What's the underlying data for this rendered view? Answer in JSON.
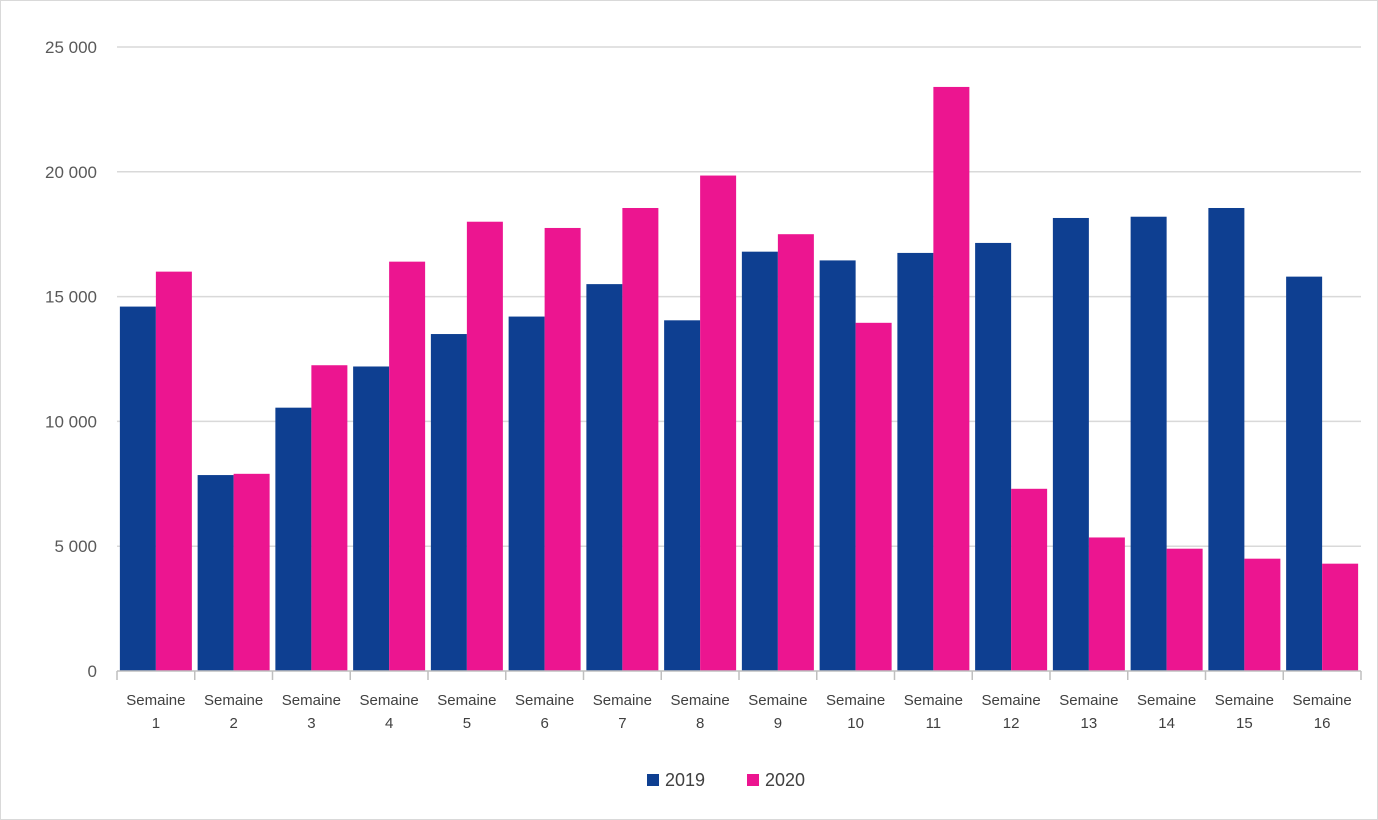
{
  "chart_data": {
    "type": "bar",
    "categories": [
      [
        "Semaine",
        "1"
      ],
      [
        "Semaine",
        "2"
      ],
      [
        "Semaine",
        "3"
      ],
      [
        "Semaine",
        "4"
      ],
      [
        "Semaine",
        "5"
      ],
      [
        "Semaine",
        "6"
      ],
      [
        "Semaine",
        "7"
      ],
      [
        "Semaine",
        "8"
      ],
      [
        "Semaine",
        "9"
      ],
      [
        "Semaine",
        "10"
      ],
      [
        "Semaine",
        "11"
      ],
      [
        "Semaine",
        "12"
      ],
      [
        "Semaine",
        "13"
      ],
      [
        "Semaine",
        "14"
      ],
      [
        "Semaine",
        "15"
      ],
      [
        "Semaine",
        "16"
      ]
    ],
    "series": [
      {
        "name": "2019",
        "color": "#0e3f91",
        "values": [
          14600,
          7850,
          10550,
          12200,
          13500,
          14200,
          15500,
          14050,
          16800,
          16450,
          16750,
          17150,
          18150,
          18200,
          18550,
          15800
        ]
      },
      {
        "name": "2020",
        "color": "#ec1590",
        "values": [
          16000,
          7900,
          12250,
          16400,
          18000,
          17750,
          18550,
          19850,
          17500,
          13950,
          23400,
          7300,
          5350,
          4900,
          4500,
          4300
        ]
      }
    ],
    "ylim": [
      0,
      25000
    ],
    "yticks": [
      0,
      5000,
      10000,
      15000,
      20000,
      25000
    ],
    "ytick_labels": [
      "0",
      "5 000",
      "10 000",
      "15 000",
      "20 000",
      "25 000"
    ],
    "grid": true,
    "legend_position": "bottom-center",
    "title": "",
    "xlabel": "",
    "ylabel": ""
  }
}
